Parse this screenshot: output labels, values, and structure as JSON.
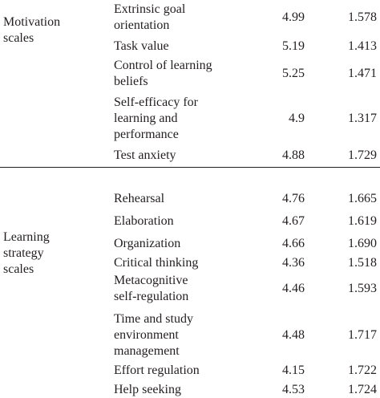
{
  "sections": [
    {
      "group_label": "Motivation\nscales",
      "rows": [
        {
          "label": "Extrinsic goal\norientation",
          "mean": "4.99",
          "sd": "1.578"
        },
        {
          "label": "Task value",
          "mean": "5.19",
          "sd": "1.413"
        },
        {
          "label": "Control of learning\nbeliefs",
          "mean": "5.25",
          "sd": "1.471"
        },
        {
          "label": "Self-efficacy for\nlearning and\nperformance",
          "mean": "4.9",
          "sd": "1.317"
        },
        {
          "label": "Test anxiety",
          "mean": "4.88",
          "sd": "1.729"
        }
      ]
    },
    {
      "group_label": "Learning\nstrategy\nscales",
      "rows": [
        {
          "label": "Rehearsal",
          "mean": "4.76",
          "sd": "1.665"
        },
        {
          "label": "Elaboration",
          "mean": "4.67",
          "sd": "1.619"
        },
        {
          "label": "Organization",
          "mean": "4.66",
          "sd": "1.690"
        },
        {
          "label": "Critical thinking",
          "mean": "4.36",
          "sd": "1.518"
        },
        {
          "label": "Metacognitive\nself-regulation",
          "mean": "4.46",
          "sd": "1.593"
        },
        {
          "label": "Time and study\nenvironment\nmanagement",
          "mean": "4.48",
          "sd": "1.717"
        },
        {
          "label": "Effort regulation",
          "mean": "4.15",
          "sd": "1.722"
        },
        {
          "label": "Help seeking",
          "mean": "4.53",
          "sd": "1.724"
        }
      ]
    }
  ]
}
